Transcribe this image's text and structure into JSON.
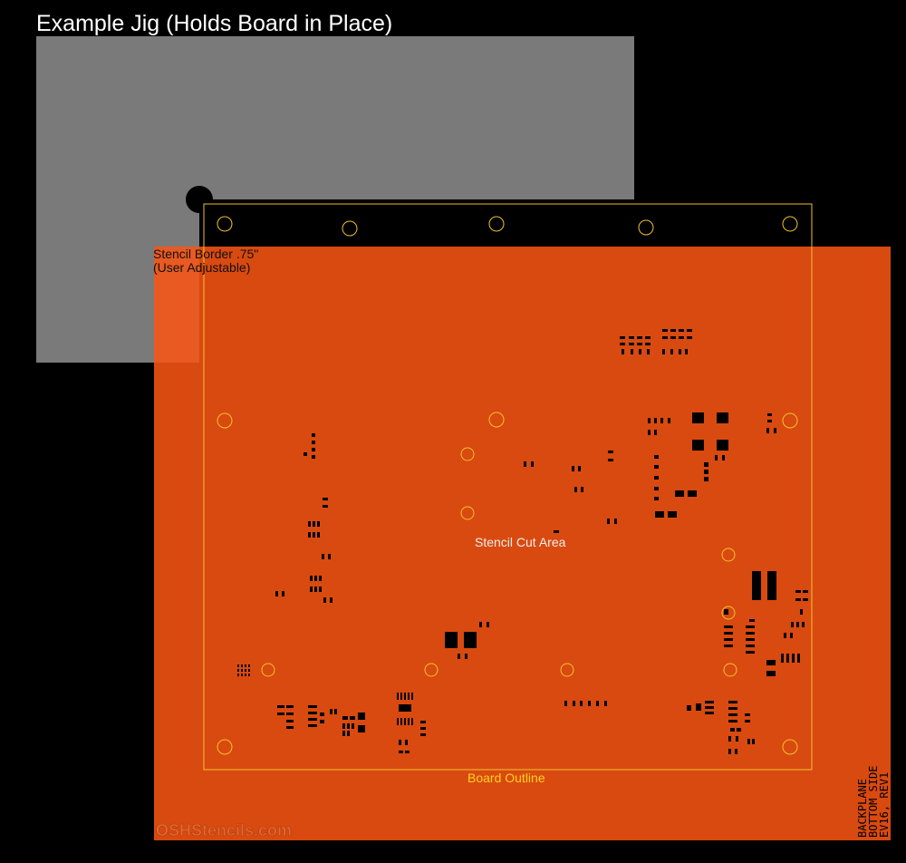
{
  "title": "Example Jig (Holds Board in Place)",
  "stencil_border": {
    "line1": "Stencil Border .75\"",
    "line2": "(User Adjustable)"
  },
  "cut_area_label": "Stencil Cut Area",
  "board_outline_label": "Board Outline",
  "watermark": "OSHStencils.com",
  "board_side_text": {
    "line1": "BACKPLANE",
    "line2": "BOTTOM SIDE",
    "line3": "EV16, REV1"
  },
  "colors": {
    "background": "#000000",
    "jig": "#7a7a7a",
    "stencil": "#d94a10",
    "stencil_overlap": "#e85a22",
    "outline": "#f2c12e",
    "title_text": "#ffffff"
  }
}
